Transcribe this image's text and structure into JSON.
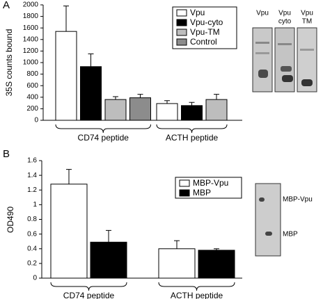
{
  "chart_data": [
    {
      "type": "bar",
      "panel_label": "A",
      "y_label": "35S counts bound",
      "categories": [
        "CD74 peptide",
        "ACTH peptide"
      ],
      "series": [
        {
          "name": "Vpu",
          "color": "#ffffff",
          "values": [
            1540,
            290
          ],
          "errors": [
            440,
            50
          ]
        },
        {
          "name": "Vpu-cyto",
          "color": "#000000",
          "values": [
            930,
            255
          ],
          "errors": [
            220,
            55
          ]
        },
        {
          "name": "Vpu-TM",
          "color": "#bdbdbd",
          "values": [
            360,
            360
          ],
          "errors": [
            50,
            90
          ]
        },
        {
          "name": "Control",
          "color": "#8c8c8c",
          "values": [
            390,
            null
          ],
          "errors": [
            60,
            null
          ]
        }
      ],
      "ylim": [
        0,
        2000
      ],
      "yticks": [
        0,
        200,
        400,
        600,
        800,
        1000,
        1200,
        1400,
        1600,
        1800,
        2000
      ],
      "gel_lanes": [
        [
          "Vpu"
        ],
        [
          "Vpu",
          "cyto"
        ],
        [
          "Vpu",
          "TM"
        ]
      ]
    },
    {
      "type": "bar",
      "panel_label": "B",
      "y_label": "OD490",
      "categories": [
        "CD74 peptide",
        "ACTH peptide"
      ],
      "series": [
        {
          "name": "MBP-Vpu",
          "color": "#ffffff",
          "values": [
            1.28,
            0.4
          ],
          "errors": [
            0.2,
            0.11
          ]
        },
        {
          "name": "MBP",
          "color": "#000000",
          "values": [
            0.49,
            0.38
          ],
          "errors": [
            0.16,
            0.02
          ]
        }
      ],
      "ylim": [
        0,
        1.6
      ],
      "yticks": [
        0,
        0.2,
        0.4,
        0.6,
        0.8,
        1,
        1.2,
        1.4,
        1.6
      ],
      "gel_bands": [
        "MBP-Vpu",
        "MBP"
      ]
    }
  ]
}
